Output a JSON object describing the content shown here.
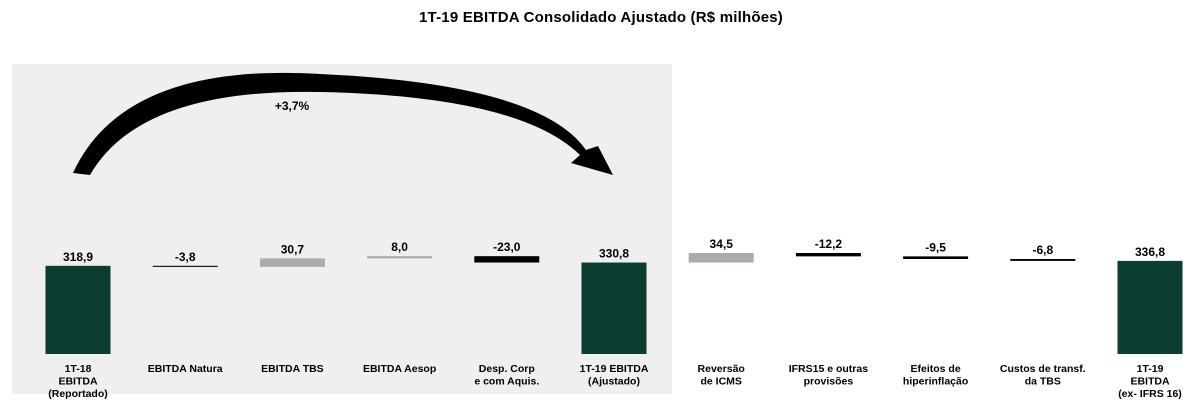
{
  "title": "1T-19 EBITDA Consolidado Ajustado (R$ milhões)",
  "growth_annotation": "+3,7%",
  "chart_data": {
    "type": "waterfall",
    "title": "1T-19 EBITDA Consolidado Ajustado (R$ milhões)",
    "categories": [
      [
        "1T-18",
        "EBITDA",
        "(Reportado)"
      ],
      [
        "EBITDA Natura"
      ],
      [
        "EBITDA TBS"
      ],
      [
        "EBITDA Aesop"
      ],
      [
        "Desp. Corp",
        "e com Aquis."
      ],
      [
        "1T-19 EBITDA",
        "(Ajustado)"
      ],
      [
        "Reversão",
        "de ICMS"
      ],
      [
        "IFRS15 e outras",
        "provisões"
      ],
      [
        "Efeitos de",
        "hiperinflação"
      ],
      [
        "Custos de transf.",
        "da TBS"
      ],
      [
        "1T-19",
        "EBITDA",
        "(ex- IFRS 16)"
      ]
    ],
    "values": [
      318.9,
      -3.8,
      30.7,
      8.0,
      -23.0,
      330.8,
      34.5,
      -12.2,
      -9.5,
      -6.8,
      336.8
    ],
    "labels": [
      "318,9",
      "-3,8",
      "30,7",
      "8,0",
      "-23,0",
      "330,8",
      "34,5",
      "-12,2",
      "-9,5",
      "-6,8",
      "336,8"
    ],
    "kinds": [
      "total",
      "delta",
      "delta",
      "delta",
      "delta",
      "total",
      "delta",
      "delta",
      "delta",
      "delta",
      "total"
    ],
    "colors": {
      "total": "#0b3d33",
      "positive": "#aeaaa9",
      "negative": "#000000",
      "highlight_panel": "#efefef"
    },
    "highlighted_range": [
      0,
      5
    ],
    "grid": false,
    "legend": "none"
  }
}
